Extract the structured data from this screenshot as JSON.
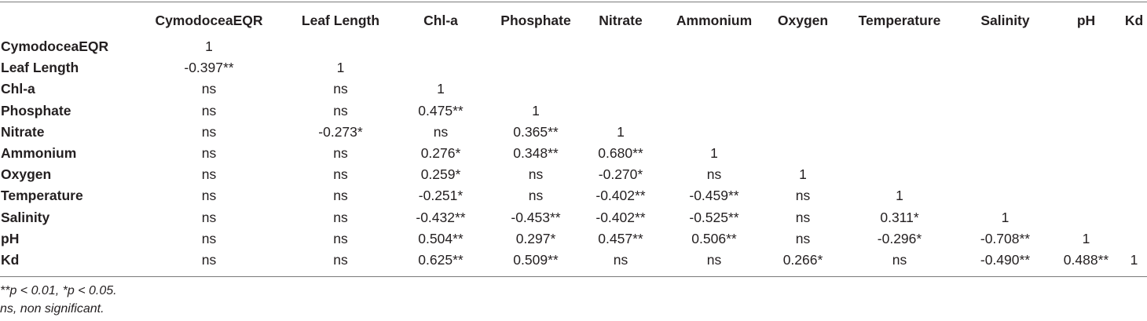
{
  "table": {
    "columns": [
      "CymodoceaEQR",
      "Leaf Length",
      "Chl-a",
      "Phosphate",
      "Nitrate",
      "Ammonium",
      "Oxygen",
      "Temperature",
      "Salinity",
      "pH",
      "Kd"
    ],
    "rows": [
      {
        "label": "CymodoceaEQR",
        "cells": [
          "1",
          "",
          "",
          "",
          "",
          "",
          "",
          "",
          "",
          "",
          ""
        ]
      },
      {
        "label": "Leaf Length",
        "cells": [
          "-0.397**",
          "1",
          "",
          "",
          "",
          "",
          "",
          "",
          "",
          "",
          ""
        ]
      },
      {
        "label": "Chl-a",
        "cells": [
          "ns",
          "ns",
          "1",
          "",
          "",
          "",
          "",
          "",
          "",
          "",
          ""
        ]
      },
      {
        "label": "Phosphate",
        "cells": [
          "ns",
          "ns",
          "0.475**",
          "1",
          "",
          "",
          "",
          "",
          "",
          "",
          ""
        ]
      },
      {
        "label": "Nitrate",
        "cells": [
          "ns",
          "-0.273*",
          "ns",
          "0.365**",
          "1",
          "",
          "",
          "",
          "",
          "",
          ""
        ]
      },
      {
        "label": "Ammonium",
        "cells": [
          "ns",
          "ns",
          "0.276*",
          "0.348**",
          "0.680**",
          "1",
          "",
          "",
          "",
          "",
          ""
        ]
      },
      {
        "label": "Oxygen",
        "cells": [
          "ns",
          "ns",
          "0.259*",
          "ns",
          "-0.270*",
          "ns",
          "1",
          "",
          "",
          "",
          ""
        ]
      },
      {
        "label": "Temperature",
        "cells": [
          "ns",
          "ns",
          "-0.251*",
          "ns",
          "-0.402**",
          "-0.459**",
          "ns",
          "1",
          "",
          "",
          ""
        ]
      },
      {
        "label": "Salinity",
        "cells": [
          "ns",
          "ns",
          "-0.432**",
          "-0.453**",
          "-0.402**",
          "-0.525**",
          "ns",
          "0.311*",
          "1",
          "",
          ""
        ]
      },
      {
        "label": "pH",
        "cells": [
          "ns",
          "ns",
          "0.504**",
          "0.297*",
          "0.457**",
          "0.506**",
          "ns",
          "-0.296*",
          "-0.708**",
          "1",
          ""
        ]
      },
      {
        "label": "Kd",
        "cells": [
          "ns",
          "ns",
          "0.625**",
          "0.509**",
          "ns",
          "ns",
          "0.266*",
          "ns",
          "-0.490**",
          "0.488**",
          "1"
        ]
      }
    ]
  },
  "footnotes": {
    "significance": "**p < 0.01, *p < 0.05.",
    "ns": "ns, non significant."
  }
}
